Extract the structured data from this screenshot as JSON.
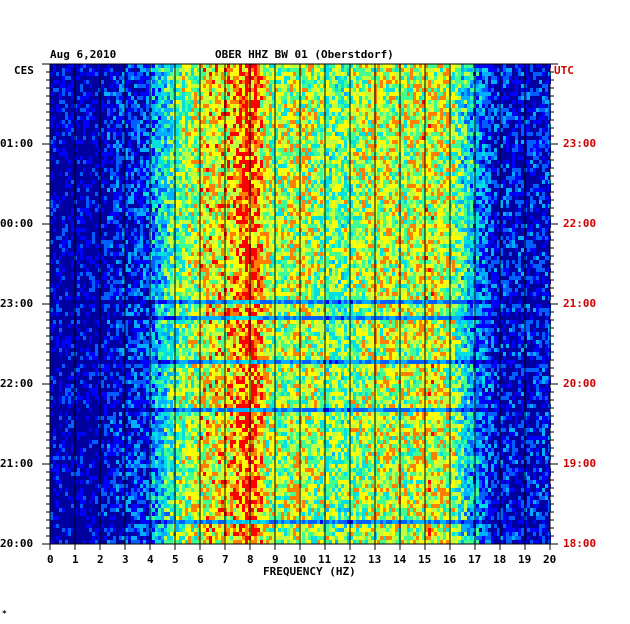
{
  "header": {
    "date": "Aug 6,2010",
    "station": "OBER HHZ BW 01 (Oberstdorf)",
    "left_zone": "CES",
    "right_zone": "UTC",
    "footnote_mark": "*"
  },
  "colors": {
    "utc_labels": "#d00000",
    "background": "#0000a0"
  },
  "chart_data": {
    "type": "heatmap",
    "title": "OBER HHZ BW 01 (Oberstdorf)",
    "xlabel": "FREQUENCY (HZ)",
    "ylabel": "",
    "xlim": [
      0,
      20
    ],
    "x_ticks": [
      "0",
      "1",
      "2",
      "3",
      "4",
      "5",
      "6",
      "7",
      "8",
      "9",
      "10",
      "11",
      "12",
      "13",
      "14",
      "15",
      "16",
      "17",
      "18",
      "19",
      "20"
    ],
    "y_left_ticks": [
      "01:00",
      "00:00",
      "23:00",
      "22:00",
      "21:00",
      "20:00"
    ],
    "y_right_ticks": [
      "23:00",
      "22:00",
      "21:00",
      "20:00",
      "19:00",
      "18:00"
    ],
    "colormap": [
      "#0000a0",
      "#0000ff",
      "#0060ff",
      "#00b0ff",
      "#00e0e0",
      "#40ff90",
      "#c0ff40",
      "#ffff00",
      "#ff8000",
      "#ff0000"
    ],
    "grid": true
  }
}
